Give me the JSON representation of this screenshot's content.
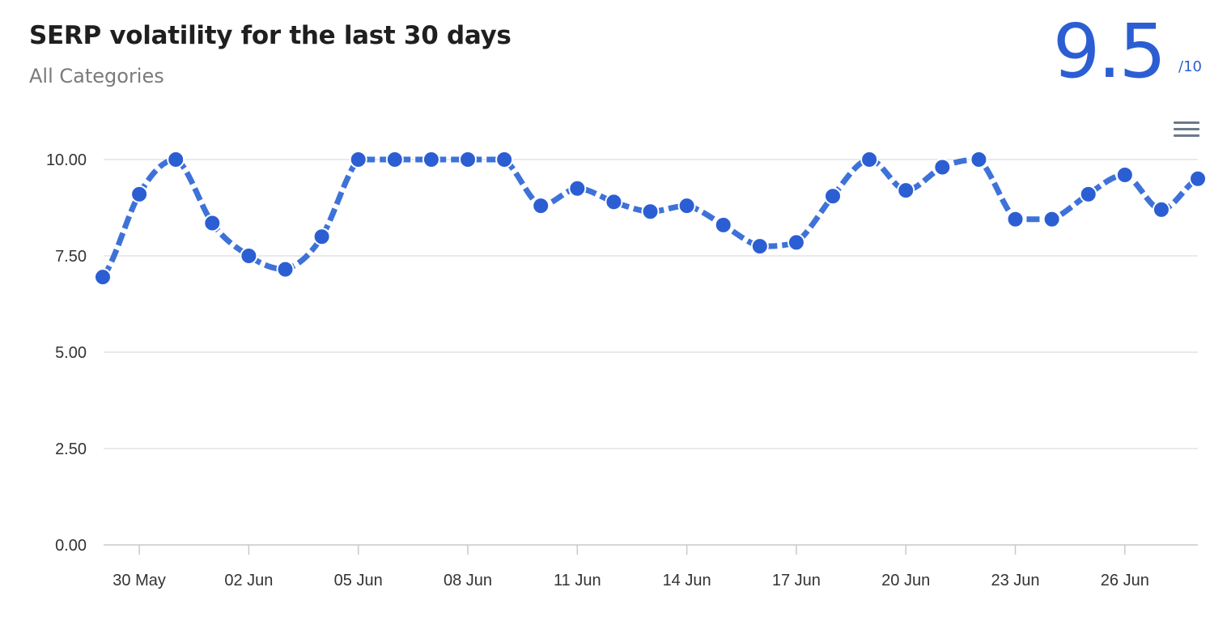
{
  "header": {
    "title": "SERP volatility for the last 30 days",
    "subtitle": "All Categories",
    "score": "9.5",
    "score_max": "/10"
  },
  "menu_icon": "hamburger-menu-icon",
  "colors": {
    "series": "#3e72d8",
    "point": "#2c5ed3",
    "grid": "#e3e3e3",
    "axis_text": "#333333",
    "score": "#2c5ed3"
  },
  "chart_data": {
    "type": "line",
    "title": "SERP volatility for the last 30 days",
    "subtitle": "All Categories",
    "xlabel": "",
    "ylabel": "",
    "ylim": [
      0,
      10
    ],
    "yticks": [
      "0.00",
      "2.50",
      "5.00",
      "7.50",
      "10.00"
    ],
    "grid": "horizontal",
    "legend": "none",
    "x_tick_labels": [
      "30 May",
      "02 Jun",
      "05 Jun",
      "08 Jun",
      "11 Jun",
      "14 Jun",
      "17 Jun",
      "20 Jun",
      "23 Jun",
      "26 Jun"
    ],
    "x": [
      "29 May",
      "30 May",
      "31 May",
      "01 Jun",
      "02 Jun",
      "03 Jun",
      "04 Jun",
      "05 Jun",
      "06 Jun",
      "07 Jun",
      "08 Jun",
      "09 Jun",
      "10 Jun",
      "11 Jun",
      "12 Jun",
      "13 Jun",
      "14 Jun",
      "15 Jun",
      "16 Jun",
      "17 Jun",
      "18 Jun",
      "19 Jun",
      "20 Jun",
      "21 Jun",
      "22 Jun",
      "23 Jun",
      "24 Jun",
      "25 Jun",
      "26 Jun",
      "27 Jun",
      "28 Jun"
    ],
    "series": [
      {
        "values": [
          6.95,
          9.1,
          10.0,
          8.35,
          7.5,
          7.15,
          8.0,
          10.0,
          10.0,
          10.0,
          10.0,
          10.0,
          8.8,
          9.25,
          8.9,
          8.65,
          8.8,
          8.3,
          7.75,
          7.85,
          9.05,
          10.0,
          9.2,
          9.8,
          10.0,
          8.45,
          8.45,
          9.1,
          9.6,
          8.7,
          9.5
        ]
      }
    ]
  }
}
